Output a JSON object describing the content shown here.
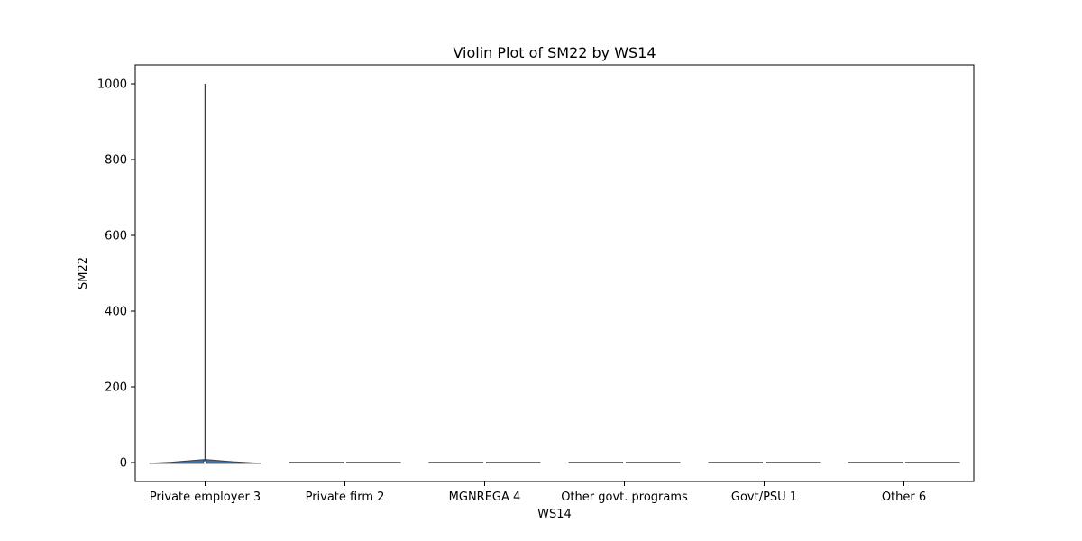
{
  "chart_data": {
    "type": "violin",
    "title": "Violin Plot of SM22 by WS14",
    "xlabel": "WS14",
    "ylabel": "SM22",
    "categories": [
      "Private employer 3",
      "Private firm 2",
      "MGNREGA 4",
      "Other govt. programs",
      "Govt/PSU 1",
      "Other 6"
    ],
    "ylim": [
      -50,
      1050
    ],
    "yticks": [
      0,
      200,
      400,
      600,
      800,
      1000
    ],
    "grid": false,
    "violins": [
      {
        "category": "Private employer 3",
        "min": 0,
        "max": 1000,
        "q1": 0,
        "median": 0,
        "q3": 5
      },
      {
        "category": "Private firm 2",
        "min": 0,
        "max": 0,
        "q1": 0,
        "median": 0,
        "q3": 0
      },
      {
        "category": "MGNREGA 4",
        "min": 0,
        "max": 0,
        "q1": 0,
        "median": 0,
        "q3": 0
      },
      {
        "category": "Other govt. programs",
        "min": 0,
        "max": 0,
        "q1": 0,
        "median": 0,
        "q3": 0
      },
      {
        "category": "Govt/PSU 1",
        "min": 0,
        "max": 0,
        "q1": 0,
        "median": 0,
        "q3": 0
      },
      {
        "category": "Other 6",
        "min": 0,
        "max": 0,
        "q1": 0,
        "median": 0,
        "q3": 0
      }
    ],
    "colors": {
      "violin_fill": "#3b75af",
      "edge": "#3f3f3f",
      "axis": "#000000"
    }
  }
}
